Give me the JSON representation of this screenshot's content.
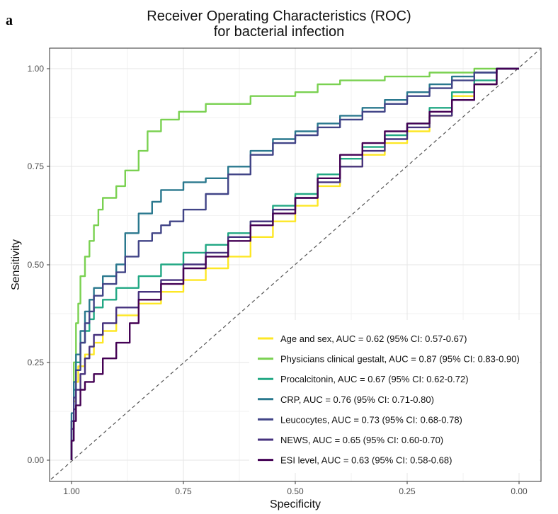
{
  "panel_label": "a",
  "chart_data": {
    "type": "line",
    "title": "Receiver Operating Characteristics (ROC)",
    "subtitle": "for bacterial infection",
    "xlabel": "Specificity",
    "ylabel": "Sensitivity",
    "xlim": [
      1.0,
      0.0
    ],
    "ylim": [
      0.0,
      1.0
    ],
    "x_reversed": true,
    "xticks": [
      "1.00",
      "0.75",
      "0.50",
      "0.25",
      "0.00"
    ],
    "yticks": [
      "0.00",
      "0.25",
      "0.50",
      "0.75",
      "1.00"
    ],
    "grid": true,
    "legend_position": "bottom-right",
    "reference_line": "diagonal (chance)",
    "series": [
      {
        "name": "Age and sex, AUC = 0.62 (95% CI: 0.57-0.67)",
        "color": "#fde725",
        "x": [
          1.0,
          0.995,
          0.99,
          0.985,
          0.97,
          0.95,
          0.93,
          0.9,
          0.85,
          0.8,
          0.75,
          0.7,
          0.65,
          0.6,
          0.55,
          0.5,
          0.45,
          0.4,
          0.35,
          0.3,
          0.25,
          0.2,
          0.15,
          0.1,
          0.05,
          0.0
        ],
        "y": [
          0.0,
          0.1,
          0.15,
          0.2,
          0.24,
          0.27,
          0.3,
          0.33,
          0.37,
          0.4,
          0.43,
          0.46,
          0.49,
          0.52,
          0.57,
          0.61,
          0.65,
          0.7,
          0.75,
          0.78,
          0.81,
          0.84,
          0.88,
          0.93,
          0.96,
          1.0
        ]
      },
      {
        "name": "Physicians clinical gestalt, AUC = 0.87 (95% CI: 0.83-0.90)",
        "color": "#7ad151",
        "x": [
          1.0,
          0.995,
          0.99,
          0.985,
          0.98,
          0.97,
          0.96,
          0.95,
          0.94,
          0.93,
          0.9,
          0.88,
          0.85,
          0.83,
          0.8,
          0.78,
          0.76,
          0.7,
          0.6,
          0.5,
          0.45,
          0.4,
          0.3,
          0.2,
          0.1,
          0.05,
          0.0
        ],
        "y": [
          0.0,
          0.1,
          0.25,
          0.35,
          0.4,
          0.47,
          0.52,
          0.56,
          0.6,
          0.64,
          0.67,
          0.7,
          0.74,
          0.79,
          0.84,
          0.87,
          0.87,
          0.89,
          0.91,
          0.93,
          0.94,
          0.96,
          0.97,
          0.98,
          0.99,
          1.0,
          1.0
        ]
      },
      {
        "name": "Procalcitonin, AUC = 0.67 (95% CI: 0.62-0.72)",
        "color": "#22a884",
        "x": [
          1.0,
          0.995,
          0.99,
          0.98,
          0.97,
          0.96,
          0.95,
          0.93,
          0.9,
          0.85,
          0.8,
          0.75,
          0.7,
          0.65,
          0.6,
          0.55,
          0.5,
          0.45,
          0.4,
          0.35,
          0.3,
          0.25,
          0.2,
          0.15,
          0.1,
          0.05,
          0.0
        ],
        "y": [
          0.0,
          0.1,
          0.18,
          0.25,
          0.3,
          0.33,
          0.36,
          0.39,
          0.41,
          0.44,
          0.47,
          0.5,
          0.53,
          0.55,
          0.58,
          0.61,
          0.65,
          0.68,
          0.73,
          0.77,
          0.8,
          0.83,
          0.86,
          0.9,
          0.94,
          0.97,
          1.0
        ]
      },
      {
        "name": "CRP, AUC = 0.76 (95% CI: 0.71-0.80)",
        "color": "#2a788e",
        "x": [
          1.0,
          0.995,
          0.99,
          0.98,
          0.97,
          0.96,
          0.95,
          0.93,
          0.9,
          0.88,
          0.85,
          0.82,
          0.8,
          0.75,
          0.7,
          0.65,
          0.6,
          0.55,
          0.5,
          0.45,
          0.4,
          0.35,
          0.3,
          0.25,
          0.2,
          0.15,
          0.1,
          0.05,
          0.0
        ],
        "y": [
          0.0,
          0.12,
          0.2,
          0.27,
          0.33,
          0.38,
          0.41,
          0.44,
          0.47,
          0.5,
          0.58,
          0.63,
          0.66,
          0.69,
          0.71,
          0.72,
          0.75,
          0.79,
          0.82,
          0.84,
          0.86,
          0.88,
          0.9,
          0.92,
          0.94,
          0.96,
          0.98,
          0.99,
          1.0
        ]
      },
      {
        "name": "Leucocytes, AUC = 0.73 (95% CI: 0.68-0.78)",
        "color": "#414487",
        "x": [
          1.0,
          0.995,
          0.99,
          0.98,
          0.97,
          0.96,
          0.95,
          0.93,
          0.9,
          0.88,
          0.85,
          0.82,
          0.8,
          0.78,
          0.75,
          0.7,
          0.65,
          0.6,
          0.55,
          0.5,
          0.45,
          0.4,
          0.35,
          0.3,
          0.25,
          0.2,
          0.15,
          0.1,
          0.05,
          0.0
        ],
        "y": [
          0.0,
          0.1,
          0.16,
          0.23,
          0.3,
          0.35,
          0.38,
          0.42,
          0.45,
          0.48,
          0.52,
          0.56,
          0.58,
          0.6,
          0.61,
          0.64,
          0.68,
          0.73,
          0.78,
          0.81,
          0.83,
          0.85,
          0.87,
          0.89,
          0.91,
          0.93,
          0.95,
          0.97,
          0.99,
          1.0
        ]
      },
      {
        "name": "NEWS, AUC = 0.65 (95% CI: 0.60-0.70)",
        "color": "#46327e",
        "x": [
          1.0,
          0.995,
          0.99,
          0.98,
          0.97,
          0.96,
          0.95,
          0.93,
          0.9,
          0.85,
          0.8,
          0.75,
          0.7,
          0.65,
          0.6,
          0.55,
          0.5,
          0.45,
          0.4,
          0.35,
          0.3,
          0.25,
          0.2,
          0.15,
          0.1,
          0.05,
          0.0
        ],
        "y": [
          0.0,
          0.08,
          0.13,
          0.18,
          0.22,
          0.26,
          0.29,
          0.32,
          0.35,
          0.39,
          0.43,
          0.46,
          0.5,
          0.53,
          0.57,
          0.61,
          0.64,
          0.67,
          0.71,
          0.75,
          0.79,
          0.82,
          0.85,
          0.88,
          0.92,
          0.96,
          1.0
        ]
      },
      {
        "name": "ESI level, AUC = 0.63 (95% CI: 0.58-0.68)",
        "color": "#440154",
        "x": [
          1.0,
          0.995,
          0.99,
          0.98,
          0.97,
          0.95,
          0.93,
          0.9,
          0.87,
          0.85,
          0.8,
          0.75,
          0.7,
          0.65,
          0.6,
          0.55,
          0.5,
          0.45,
          0.4,
          0.35,
          0.3,
          0.25,
          0.2,
          0.15,
          0.1,
          0.05,
          0.0
        ],
        "y": [
          0.0,
          0.05,
          0.1,
          0.14,
          0.18,
          0.2,
          0.22,
          0.26,
          0.3,
          0.35,
          0.41,
          0.45,
          0.49,
          0.52,
          0.56,
          0.6,
          0.63,
          0.67,
          0.72,
          0.78,
          0.81,
          0.84,
          0.86,
          0.89,
          0.92,
          0.96,
          1.0
        ]
      }
    ]
  }
}
